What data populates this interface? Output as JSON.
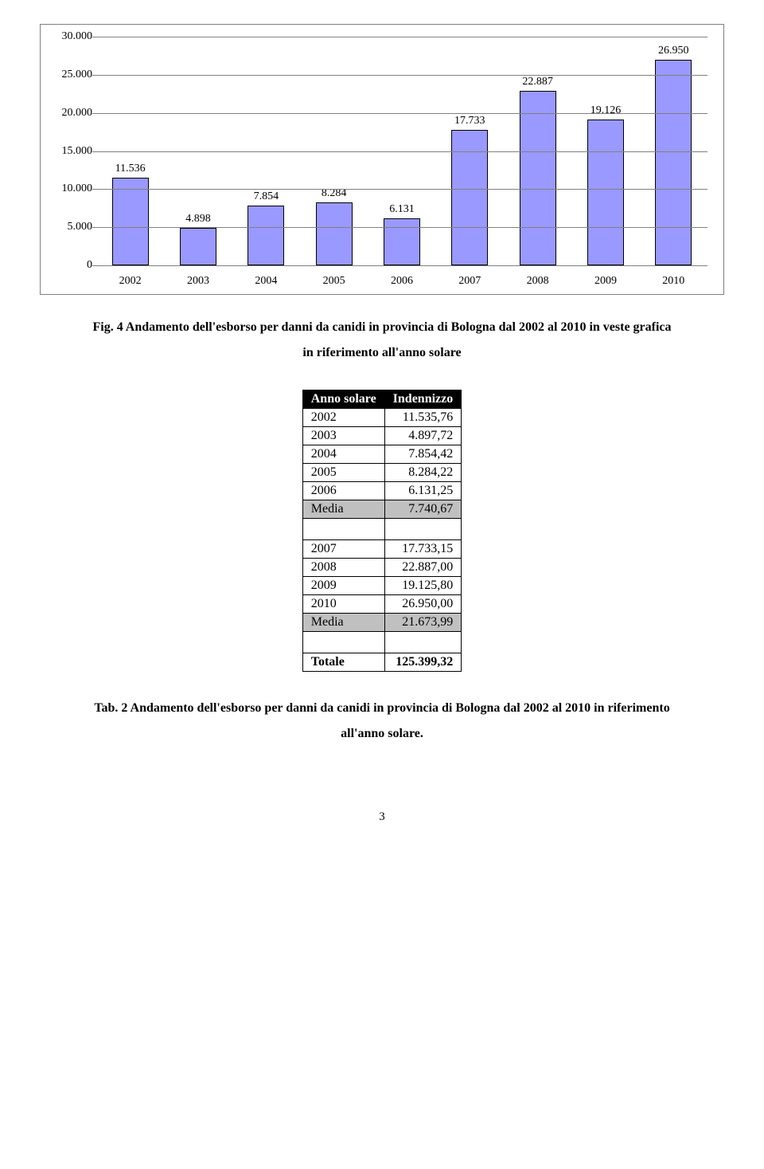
{
  "chart": {
    "type": "bar",
    "ylim": [
      0,
      30000
    ],
    "ytick_step": 5000,
    "y_ticks": [
      "0",
      "5.000",
      "10.000",
      "15.000",
      "20.000",
      "25.000",
      "30.000"
    ],
    "bar_color": "#9999ff",
    "bar_border": "#000000",
    "grid_color": "#808080",
    "background_color": "#ffffff",
    "categories": [
      "2002",
      "2003",
      "2004",
      "2005",
      "2006",
      "2007",
      "2008",
      "2009",
      "2010"
    ],
    "values": [
      11536,
      4898,
      7854,
      8284,
      6131,
      17733,
      22887,
      19126,
      26950
    ],
    "value_labels": [
      "11.536",
      "4.898",
      "7.854",
      "8.284",
      "6.131",
      "17.733",
      "22.887",
      "19.126",
      "26.950"
    ],
    "label_fontsize": 14
  },
  "fig_caption": "Fig. 4 Andamento dell'esborso per danni da canidi in provincia di Bologna dal 2002 al 2010 in veste grafica in riferimento all'anno solare",
  "table": {
    "headers": [
      "Anno solare",
      "Indennizzo"
    ],
    "group1": [
      {
        "k": "2002",
        "v": "11.535,76"
      },
      {
        "k": "2003",
        "v": "4.897,72"
      },
      {
        "k": "2004",
        "v": "7.854,42"
      },
      {
        "k": "2005",
        "v": "8.284,22"
      },
      {
        "k": "2006",
        "v": "6.131,25"
      }
    ],
    "media1": {
      "k": "Media",
      "v": "7.740,67"
    },
    "group2": [
      {
        "k": "2007",
        "v": "17.733,15"
      },
      {
        "k": "2008",
        "v": "22.887,00"
      },
      {
        "k": "2009",
        "v": "19.125,80"
      },
      {
        "k": "2010",
        "v": "26.950,00"
      }
    ],
    "media2": {
      "k": "Media",
      "v": "21.673,99"
    },
    "totale": {
      "k": "Totale",
      "v": "125.399,32"
    }
  },
  "tab_caption": "Tab. 2 Andamento dell'esborso per danni da canidi in provincia di Bologna dal 2002 al 2010 in riferimento all'anno solare.",
  "page_number": "3"
}
